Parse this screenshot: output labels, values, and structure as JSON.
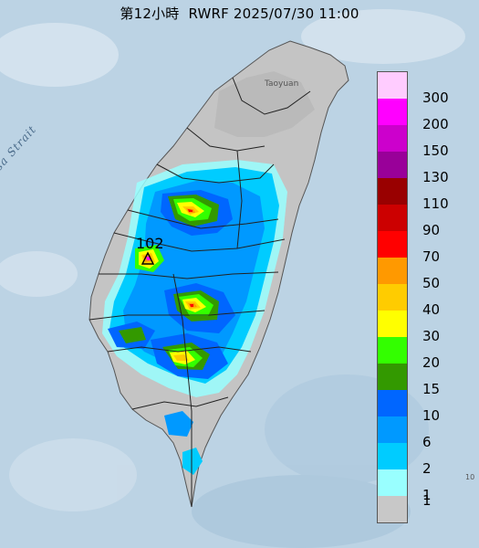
{
  "title": "第12小時  RWRF 2025/07/30 11:00",
  "map_labels": {
    "strait": "Formosa Strait",
    "city": "Taoyuan",
    "max_value": "102",
    "edge": "10"
  },
  "legend": {
    "unit_items": [
      {
        "label": "300",
        "color": "#ffccff"
      },
      {
        "label": "200",
        "color": "#ff00ff"
      },
      {
        "label": "150",
        "color": "#cc00cc"
      },
      {
        "label": "130",
        "color": "#990099"
      },
      {
        "label": "110",
        "color": "#990000"
      },
      {
        "label": "90",
        "color": "#cc0000"
      },
      {
        "label": "70",
        "color": "#ff0000"
      },
      {
        "label": "50",
        "color": "#ff9900"
      },
      {
        "label": "40",
        "color": "#ffcc00"
      },
      {
        "label": "30",
        "color": "#ffff00"
      },
      {
        "label": "20",
        "color": "#33ff00"
      },
      {
        "label": "15",
        "color": "#339900"
      },
      {
        "label": "10",
        "color": "#0066ff"
      },
      {
        "label": "6",
        "color": "#0099ff"
      },
      {
        "label": "2",
        "color": "#00ccff"
      },
      {
        "label": "1",
        "color": "#99ffff"
      },
      {
        "label": "",
        "color": "#c8c8c8"
      }
    ]
  },
  "colors": {
    "sea": "#bcd3e4",
    "land": "#c4c4c4",
    "border": "#222222"
  }
}
